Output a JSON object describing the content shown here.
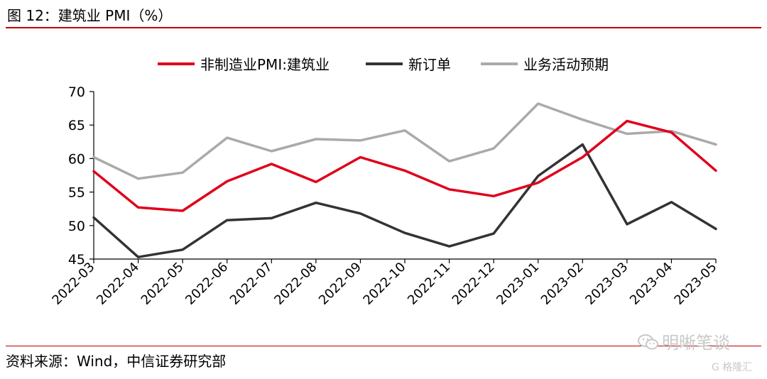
{
  "header": {
    "figure_title": "图 12：建筑业 PMI（%）"
  },
  "footer": {
    "source": "资料来源：Wind，中信证券研究部"
  },
  "watermark": {
    "text": "明晰笔谈",
    "icon": "wechat-icon",
    "badge_text": "G 格隆汇"
  },
  "chart_data": {
    "type": "line",
    "title": "",
    "xlabel": "",
    "ylabel": "",
    "ylim": [
      45,
      70
    ],
    "yticks": [
      45,
      50,
      55,
      60,
      65,
      70
    ],
    "grid": false,
    "legend_position": "top-center",
    "categories": [
      "2022-03",
      "2022-04",
      "2022-05",
      "2022-06",
      "2022-07",
      "2022-08",
      "2022-09",
      "2022-10",
      "2022-11",
      "2022-12",
      "2023-01",
      "2023-02",
      "2023-03",
      "2023-04",
      "2023-05"
    ],
    "series": [
      {
        "name": "非制造业PMI:建筑业",
        "color": "#e0001b",
        "values": [
          58.1,
          52.7,
          52.2,
          56.6,
          59.2,
          56.5,
          60.2,
          58.2,
          55.4,
          54.4,
          56.4,
          60.2,
          65.6,
          63.9,
          58.2
        ]
      },
      {
        "name": "新订单",
        "color": "#333333",
        "values": [
          51.2,
          45.3,
          46.4,
          50.8,
          51.1,
          53.4,
          51.8,
          48.9,
          46.9,
          48.8,
          57.4,
          62.1,
          50.2,
          53.5,
          49.5
        ]
      },
      {
        "name": "业务活动预期",
        "color": "#aaaaaa",
        "values": [
          60.2,
          57.0,
          57.9,
          63.1,
          61.1,
          62.9,
          62.7,
          64.2,
          59.6,
          61.5,
          68.2,
          65.8,
          63.7,
          64.1,
          62.1
        ]
      }
    ]
  }
}
